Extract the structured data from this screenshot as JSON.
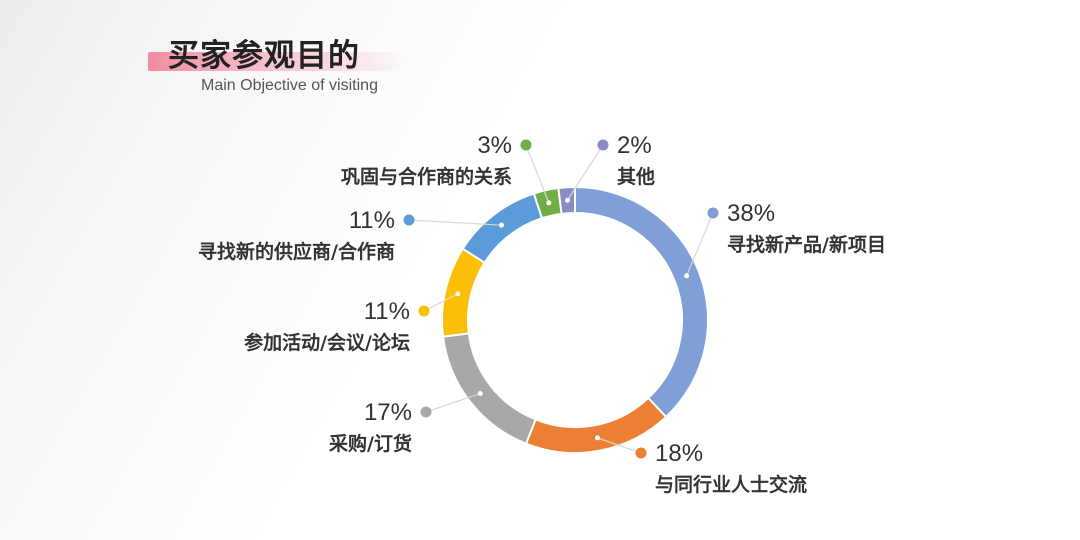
{
  "header": {
    "title": "买家参观目的",
    "subtitle": "Main Objective of visiting"
  },
  "chart_data": {
    "type": "pie",
    "variant": "donut",
    "unit": "%",
    "slices": [
      {
        "label": "寻找新产品/新项目",
        "value": 38,
        "display": "38%",
        "color": "#7f9fd6"
      },
      {
        "label": "与同行业人士交流",
        "value": 18,
        "display": "18%",
        "color": "#ec7f34"
      },
      {
        "label": "采购/订货",
        "value": 17,
        "display": "17%",
        "color": "#a8a8a8"
      },
      {
        "label": "参加活动/会议/论坛",
        "value": 11,
        "display": "11%",
        "color": "#fbbf08"
      },
      {
        "label": "寻找新的供应商/合作商",
        "value": 11,
        "display": "11%",
        "color": "#5b9bd9"
      },
      {
        "label": "巩固与合作商的关系",
        "value": 3,
        "display": "3%",
        "color": "#6fae46"
      },
      {
        "label": "其他",
        "value": 2,
        "display": "2%",
        "color": "#8c8cc4"
      }
    ]
  }
}
